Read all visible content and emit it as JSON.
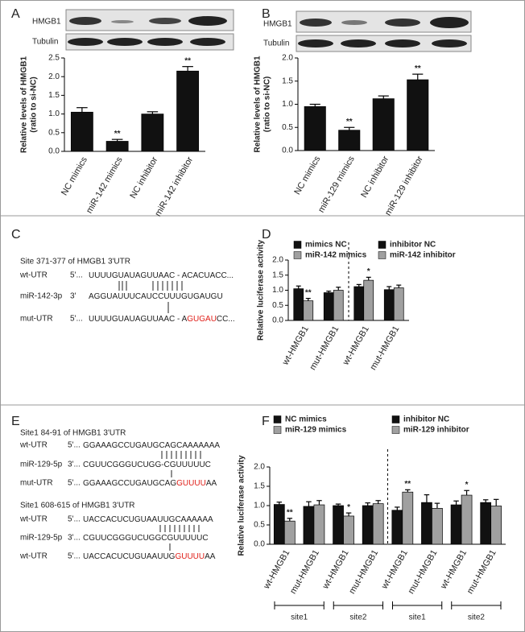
{
  "panels": [
    "A",
    "B",
    "C",
    "D",
    "E",
    "F"
  ],
  "blots": [
    {
      "bands": [
        "HMGB1",
        "Tubulin"
      ]
    },
    {
      "bands": [
        "HMGB1",
        "Tubulin"
      ]
    }
  ],
  "chart_data": [
    {
      "type": "bar",
      "ylabel": [
        "Relative levels of HMGB1",
        "(ratio to si-NC)"
      ],
      "categories": [
        "NC mimics",
        "miR-142 mimics",
        "NC inhibitor",
        "miR-142 inhibitor"
      ],
      "values": [
        1.05,
        0.27,
        1.0,
        2.15
      ],
      "errors": [
        0.12,
        0.05,
        0.06,
        0.12
      ],
      "significance": [
        null,
        "**",
        null,
        "**"
      ],
      "color": "#111111",
      "ylim": [
        0,
        2.5
      ],
      "yticks": [
        {
          "value": 0,
          "label": "0.0"
        },
        {
          "value": 0.5,
          "label": "0.5"
        },
        {
          "value": 1,
          "label": "1.0"
        },
        {
          "value": 1.5,
          "label": "1.5"
        },
        {
          "value": 2,
          "label": "2.0"
        },
        {
          "value": 2.5,
          "label": "2.5"
        }
      ]
    },
    {
      "type": "bar",
      "ylabel": [
        "Relative levels of HMGB1",
        "(ratio to si-NC)"
      ],
      "categories": [
        "NC mimics",
        "miR-129 mimics",
        "NC inhibitor",
        "miR-129 inhibitor"
      ],
      "values": [
        0.95,
        0.44,
        1.12,
        1.53
      ],
      "errors": [
        0.05,
        0.06,
        0.06,
        0.12
      ],
      "significance": [
        null,
        "**",
        null,
        "**"
      ],
      "color": "#111111",
      "ylim": [
        0,
        2
      ],
      "yticks": [
        {
          "value": 0,
          "label": "0.0"
        },
        {
          "value": 0.5,
          "label": "0.5"
        },
        {
          "value": 1,
          "label": "1.0"
        },
        {
          "value": 1.5,
          "label": "1.5"
        },
        {
          "value": 2,
          "label": "2.0"
        }
      ]
    },
    {
      "type": "grouped_bar",
      "ylabel": [
        "Relative luciferase activity"
      ],
      "categories": [
        "wt-HMGB1",
        "mut-HMGB1",
        "wt-HMGB1",
        "mut-HMGB1"
      ],
      "series": [
        {
          "name": "mimics NC",
          "color": "#111111",
          "values": [
            1.05,
            0.92,
            null,
            null
          ],
          "errors": [
            0.09,
            0.05,
            null,
            null
          ],
          "significance": [
            null,
            null,
            null,
            null
          ]
        },
        {
          "name": "miR-142 mimics",
          "color": "#a0a0a0",
          "values": [
            0.65,
            1.0,
            null,
            null
          ],
          "errors": [
            0.08,
            0.1,
            null,
            null
          ],
          "significance": [
            "**",
            null,
            null,
            null
          ]
        },
        {
          "name": "inhibitor NC",
          "color": "#111111",
          "values": [
            null,
            null,
            1.12,
            1.02
          ],
          "errors": [
            null,
            null,
            0.07,
            0.1
          ],
          "significance": [
            null,
            null,
            null,
            null
          ]
        },
        {
          "name": "miR-142 inhibitor",
          "color": "#a0a0a0",
          "values": [
            null,
            null,
            1.33,
            1.08
          ],
          "errors": [
            null,
            null,
            0.1,
            0.09
          ],
          "significance": [
            null,
            null,
            "*",
            null
          ]
        }
      ],
      "divider": true,
      "ylim": [
        0,
        2
      ],
      "yticks": [
        {
          "value": 0,
          "label": "0.0"
        },
        {
          "value": 0.5,
          "label": "0.5"
        },
        {
          "value": 1,
          "label": "1.0"
        },
        {
          "value": 1.5,
          "label": "1.5"
        },
        {
          "value": 2,
          "label": "2.0"
        }
      ]
    },
    {
      "type": "grouped_bar",
      "ylabel": [
        "Relative luciferase activity"
      ],
      "categories": [
        "wt-HMGB1",
        "mut-HMGB1",
        "wt-HMGB1",
        "mut-HMGB1",
        "wt-HMGB1",
        "mut-HMGB1",
        "wt-HMGB1",
        "mut-HMGB1"
      ],
      "series": [
        {
          "name": "NC mimics",
          "color": "#111111",
          "values": [
            1.03,
            0.98,
            1.0,
            1.0,
            null,
            null,
            null,
            null
          ],
          "errors": [
            0.06,
            0.12,
            0.04,
            0.07,
            null,
            null,
            null,
            null
          ],
          "significance": [
            null,
            null,
            null,
            null,
            null,
            null,
            null,
            null
          ]
        },
        {
          "name": "miR-129 mimics",
          "color": "#a0a0a0",
          "values": [
            0.6,
            1.02,
            0.73,
            1.05,
            null,
            null,
            null,
            null
          ],
          "errors": [
            0.07,
            0.11,
            0.08,
            0.08,
            null,
            null,
            null,
            null
          ],
          "significance": [
            "**",
            null,
            "*",
            null,
            null,
            null,
            null,
            null
          ]
        },
        {
          "name": "inhibitor NC",
          "color": "#111111",
          "values": [
            null,
            null,
            null,
            null,
            0.88,
            1.08,
            1.02,
            1.08
          ],
          "errors": [
            null,
            null,
            null,
            null,
            0.08,
            0.2,
            0.1,
            0.07
          ],
          "significance": [
            null,
            null,
            null,
            null,
            null,
            null,
            null,
            null
          ]
        },
        {
          "name": "miR-129 inhibitor",
          "color": "#a0a0a0",
          "values": [
            null,
            null,
            null,
            null,
            1.35,
            0.93,
            1.27,
            0.99
          ],
          "errors": [
            null,
            null,
            null,
            null,
            0.06,
            0.13,
            0.12,
            0.17
          ],
          "significance": [
            null,
            null,
            null,
            null,
            "**",
            null,
            "*",
            null
          ]
        }
      ],
      "divider": true,
      "groups": [
        "site1",
        "site2",
        "site1",
        "site2"
      ],
      "ylim": [
        0,
        2
      ],
      "yticks": [
        {
          "value": 0,
          "label": "0.0"
        },
        {
          "value": 0.5,
          "label": "0.5"
        },
        {
          "value": 1,
          "label": "1.0"
        },
        {
          "value": 1.5,
          "label": "1.5"
        },
        {
          "value": 2,
          "label": "2.0"
        }
      ]
    }
  ],
  "alignments": [
    {
      "highlight_color": "#e0201a",
      "blocks": [
        {
          "title": "Site 371-377 of HMGB1  3'UTR",
          "rows": [
            {
              "label": "wt-UTR",
              "end": "5'...",
              "seq": [
                "UUUUGUAUAGUUAAC - ACACUACC..."
              ]
            },
            {
              "label": "miR-142-3p",
              "end": "3'",
              "seq": [
                "AGGUAUUUCAUCCUUUGUGAUGU"
              ]
            },
            {
              "label": "mut-UTR",
              "end": "5'...",
              "seq": [
                "UUUUGUAUAGUUAAC - A",
                "GUGAU",
                "CC..."
              ]
            }
          ]
        }
      ]
    },
    {
      "highlight_color": "#e0201a",
      "blocks": [
        {
          "title": "Site1 84-91 of HMGB1 3'UTR",
          "rows": [
            {
              "label": "wt-UTR",
              "end": "5'...",
              "seq": [
                "GGAAAGCCUGAUGCAGCAAAAAAA"
              ]
            },
            {
              "label": "miR-129-5p",
              "end": "3'...",
              "seq": [
                "CGUUCGGGUCUGG-CGUUUUUC"
              ]
            },
            {
              "label": "mut-UTR",
              "end": "5'...",
              "seq": [
                "GGAAAGCCUGAUGCAG",
                "GUUUU",
                "AA"
              ]
            }
          ]
        },
        {
          "title": "Site1 608-615 of HMGB1 3'UTR",
          "rows": [
            {
              "label": "wt-UTR",
              "end": "5'...",
              "seq": [
                "UACCACUCUGUAAUUGCAAAAAA"
              ]
            },
            {
              "label": "miR-129-5p",
              "end": "3'...",
              "seq": [
                "CGUUCGGGUCUGGCGUUUUUC"
              ]
            },
            {
              "label": "wt-UTR",
              "end": "5'...",
              "seq": [
                "UACCACUCUGUAAUUG",
                "GUUUU",
                "AA"
              ]
            }
          ]
        }
      ]
    }
  ]
}
